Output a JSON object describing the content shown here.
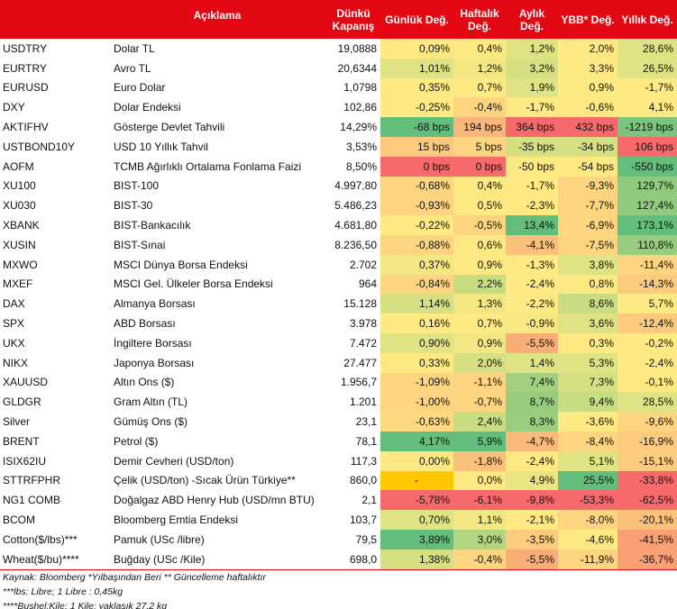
{
  "header": {
    "code": "",
    "description": "Açıklama",
    "close": "Dünkü Kapanış",
    "daily": "Günlük Değ.",
    "weekly": "Haftalık Değ.",
    "monthly": "Aylık Değ.",
    "ytd": "YBB* Değ.",
    "yearly": "Yıllık Değ."
  },
  "rows": [
    {
      "code": "USDTRY",
      "desc": "Dolar TL",
      "close": "19,0888",
      "vals": [
        "0,09%",
        "0,4%",
        "1,2%",
        "2,0%",
        "28,6%"
      ],
      "colors": [
        "#FEE983",
        "#FEE983",
        "#E0E383",
        "#FEE983",
        "#E0E383"
      ]
    },
    {
      "code": "EURTRY",
      "desc": "Avro TL",
      "close": "20,6344",
      "vals": [
        "1,01%",
        "1,2%",
        "3,2%",
        "3,3%",
        "26,5%"
      ],
      "colors": [
        "#E0E383",
        "#F2E783",
        "#D6E082",
        "#FEE983",
        "#E0E383"
      ]
    },
    {
      "code": "EURUSD",
      "desc": "Euro Dolar",
      "close": "1,0798",
      "vals": [
        "0,35%",
        "0,7%",
        "1,9%",
        "0,9%",
        "-1,7%"
      ],
      "colors": [
        "#FEE983",
        "#FEE983",
        "#E0E383",
        "#FEE983",
        "#FEE983"
      ]
    },
    {
      "code": "DXY",
      "desc": "Dolar Endeksi",
      "close": "102,86",
      "vals": [
        "-0,25%",
        "-0,4%",
        "-1,7%",
        "-0,6%",
        "4,1%"
      ],
      "colors": [
        "#FEE983",
        "#FDD47F",
        "#FEE983",
        "#FEE983",
        "#FEE983"
      ]
    },
    {
      "code": "AKTIFHV",
      "desc": "Gösterge Devlet Tahvili",
      "close": "14,29%",
      "vals": [
        "-68 bps",
        "194 bps",
        "364 bps",
        "432 bps",
        "-1219 bps"
      ],
      "colors": [
        "#63BE7B",
        "#FBB779",
        "#F8696B",
        "#F8696B",
        "#7AC47C"
      ]
    },
    {
      "code": "USTBOND10Y",
      "desc": "USD 10 Yıllık Tahvil",
      "close": "3,53%",
      "vals": [
        "15 bps",
        "5 bps",
        "-35 bps",
        "-34 bps",
        "106 bps"
      ],
      "colors": [
        "#FDC97D",
        "#FDD47F",
        "#D6E082",
        "#D6E082",
        "#F8696B"
      ]
    },
    {
      "code": "AOFM",
      "desc": "TCMB Ağırlıklı Ortalama Fonlama Faizi",
      "close": "8,50%",
      "vals": [
        "0 bps",
        "0 bps",
        "-50 bps",
        "-54 bps",
        "-550 bps"
      ],
      "colors": [
        "#F8696B",
        "#F8696B",
        "#FEE983",
        "#FEE983",
        "#63BE7B"
      ]
    },
    {
      "code": "XU100",
      "desc": "BIST-100",
      "close": "4.997,80",
      "vals": [
        "-0,68%",
        "0,4%",
        "-1,7%",
        "-9,3%",
        "129,7%"
      ],
      "colors": [
        "#FDD47F",
        "#FEE983",
        "#FEE983",
        "#FDD47F",
        "#8FCA7E"
      ]
    },
    {
      "code": "XU030",
      "desc": "BIST-30",
      "close": "5.486,23",
      "vals": [
        "-0,93%",
        "0,5%",
        "-2,3%",
        "-7,7%",
        "127,4%"
      ],
      "colors": [
        "#FDD47F",
        "#FEE983",
        "#FEE983",
        "#FDD47F",
        "#8FCA7E"
      ]
    },
    {
      "code": "XBANK",
      "desc": "BIST-Bankacılık",
      "close": "4.681,80",
      "vals": [
        "-0,22%",
        "-0,5%",
        "13,4%",
        "-6,9%",
        "173,1%"
      ],
      "colors": [
        "#FEE983",
        "#FDD47F",
        "#63BE7B",
        "#FDD47F",
        "#63BE7B"
      ]
    },
    {
      "code": "XUSIN",
      "desc": "BIST-Sınai",
      "close": "8.236,50",
      "vals": [
        "-0,88%",
        "0,6%",
        "-4,1%",
        "-7,5%",
        "110,8%"
      ],
      "colors": [
        "#FDD47F",
        "#FEE983",
        "#FBC17B",
        "#FDD47F",
        "#97CC7E"
      ]
    },
    {
      "code": "MXWO",
      "desc": "MSCI Dünya Borsa Endeksi",
      "close": "2.702",
      "vals": [
        "0,37%",
        "0,9%",
        "-1,3%",
        "3,8%",
        "-11,4%"
      ],
      "colors": [
        "#F2E783",
        "#FEE983",
        "#FEE983",
        "#E0E383",
        "#FDD47F"
      ]
    },
    {
      "code": "MXEF",
      "desc": "MSCI Gel. Ülkeler Borsa Endeksi",
      "close": "964",
      "vals": [
        "-0,84%",
        "2,2%",
        "-2,4%",
        "0,8%",
        "-14,3%"
      ],
      "colors": [
        "#FDD47F",
        "#C8DC81",
        "#FEE983",
        "#FEE983",
        "#FDCB7E"
      ]
    },
    {
      "code": "DAX",
      "desc": "Almanya Borsası",
      "close": "15.128",
      "vals": [
        "1,14%",
        "1,3%",
        "-2,2%",
        "8,6%",
        "5,7%"
      ],
      "colors": [
        "#D6E082",
        "#F2E783",
        "#FEE983",
        "#C8DC81",
        "#FEE983"
      ]
    },
    {
      "code": "SPX",
      "desc": "ABD Borsası",
      "close": "3.978",
      "vals": [
        "0,16%",
        "0,7%",
        "-0,9%",
        "3,6%",
        "-12,4%"
      ],
      "colors": [
        "#FEE983",
        "#FEE983",
        "#F8E883",
        "#E0E383",
        "#FDCB7E"
      ]
    },
    {
      "code": "UKX",
      "desc": "İngiltere Borsası",
      "close": "7.472",
      "vals": [
        "0,90%",
        "0,9%",
        "-5,5%",
        "0,3%",
        "-0,2%"
      ],
      "colors": [
        "#E0E383",
        "#F2E783",
        "#F9AD77",
        "#FEE983",
        "#FEE983"
      ]
    },
    {
      "code": "NIKX",
      "desc": "Japonya Borsası",
      "close": "27.477",
      "vals": [
        "0,33%",
        "2,0%",
        "1,4%",
        "5,3%",
        "-2,4%"
      ],
      "colors": [
        "#FEE983",
        "#D6E082",
        "#E0E383",
        "#E0E383",
        "#FEE983"
      ]
    },
    {
      "code": "XAUUSD",
      "desc": "Altın Ons ($)",
      "close": "1.956,7",
      "vals": [
        "-1,09%",
        "-1,1%",
        "7,4%",
        "7,3%",
        "-0,1%"
      ],
      "colors": [
        "#FDD47F",
        "#FDD47F",
        "#A3D07F",
        "#D6E082",
        "#FEE983"
      ]
    },
    {
      "code": "GLDGR",
      "desc": "Gram Altın (TL)",
      "close": "1.201",
      "vals": [
        "-1,00%",
        "-0,7%",
        "8,7%",
        "9,4%",
        "28,5%"
      ],
      "colors": [
        "#FDD47F",
        "#FDD47F",
        "#97CC7E",
        "#C8DC81",
        "#E0E383"
      ]
    },
    {
      "code": "Silver",
      "desc": "Gümüş Ons ($)",
      "close": "23,1",
      "vals": [
        "-0,63%",
        "2,4%",
        "8,3%",
        "-3,6%",
        "-9,6%"
      ],
      "colors": [
        "#FDDA80",
        "#C8DC81",
        "#9BCD7E",
        "#FEE983",
        "#FDD47F"
      ]
    },
    {
      "code": "BRENT",
      "desc": "Petrol ($)",
      "close": "78,1",
      "vals": [
        "4,17%",
        "5,9%",
        "-4,7%",
        "-8,4%",
        "-16,9%"
      ],
      "colors": [
        "#63BE7B",
        "#63BE7B",
        "#FBBA79",
        "#FDD47F",
        "#FDCB7E"
      ]
    },
    {
      "code": "ISIX62IU",
      "desc": "Demir Cevheri (USD/ton)",
      "close": "117,3",
      "vals": [
        "0,00%",
        "-1,8%",
        "-2,4%",
        "5,1%",
        "-15,1%"
      ],
      "colors": [
        "#FEE983",
        "#FBC17B",
        "#FEE983",
        "#E0E383",
        "#FDCB7E"
      ]
    },
    {
      "code": "STTRFPHR",
      "desc": "Çelik (USD/ton) -Sıcak Ürün Türkiye**",
      "close": "860,0",
      "vals": [
        "-",
        "0,0%",
        "4,9%",
        "25,5%",
        "-33,8%"
      ],
      "colors": [
        "#FFC800",
        "#FEE983",
        "#EAE583",
        "#63BE7B",
        "#F8696B"
      ]
    },
    {
      "code": "NG1 COMB",
      "desc": "Doğalgaz ABD Henry Hub (USD/mn BTU)",
      "close": "2,1",
      "vals": [
        "-5,78%",
        "-6,1%",
        "-9,8%",
        "-53,3%",
        "-62,5%"
      ],
      "colors": [
        "#F8696B",
        "#F8696B",
        "#F8696B",
        "#F8696B",
        "#F8696B"
      ]
    },
    {
      "code": "BCOM",
      "desc": "Bloomberg Emtia Endeksi",
      "close": "103,7",
      "vals": [
        "0,70%",
        "1,1%",
        "-2,1%",
        "-8,0%",
        "-20,1%"
      ],
      "colors": [
        "#E0E383",
        "#F2E783",
        "#FEE983",
        "#FDD47F",
        "#FBC17B"
      ]
    },
    {
      "code": "Cotton($/lbs)***",
      "desc": "Pamuk (USc /libre)",
      "close": "79,5",
      "vals": [
        "3,89%",
        "3,0%",
        "-3,5%",
        "-4,6%",
        "-41,5%"
      ],
      "colors": [
        "#63BE7B",
        "#B3D580",
        "#FDCB7E",
        "#FEE983",
        "#F9A074"
      ]
    },
    {
      "code": "Wheat($/bu)****",
      "desc": "Buğday (USc /Kile)",
      "close": "698,0",
      "vals": [
        "1,38%",
        "-0,4%",
        "-5,5%",
        "-11,9%",
        "-36,7%"
      ],
      "colors": [
        "#D6E082",
        "#FDD47F",
        "#F9AD77",
        "#FDD47F",
        "#F9A074"
      ]
    }
  ],
  "notes": [
    "Kaynak: Bloomberg *Yılbaşından Beri  ** Güncelleme haftalıktır",
    "***lbs: Libre; 1 Libre : 0,45kg",
    "****Bushel:Kile; 1 Kile: yaklaşık 27,2 kg"
  ],
  "chart_data": {
    "type": "heatmap",
    "title": "",
    "columns": [
      "Dünkü Kapanış",
      "Günlük Değ.",
      "Haftalık Değ.",
      "Aylık Değ.",
      "YBB* Değ.",
      "Yıllık Değ."
    ],
    "note": "rows mirror 'rows' array; color scale red (negative/worse) to green (positive/better)"
  }
}
